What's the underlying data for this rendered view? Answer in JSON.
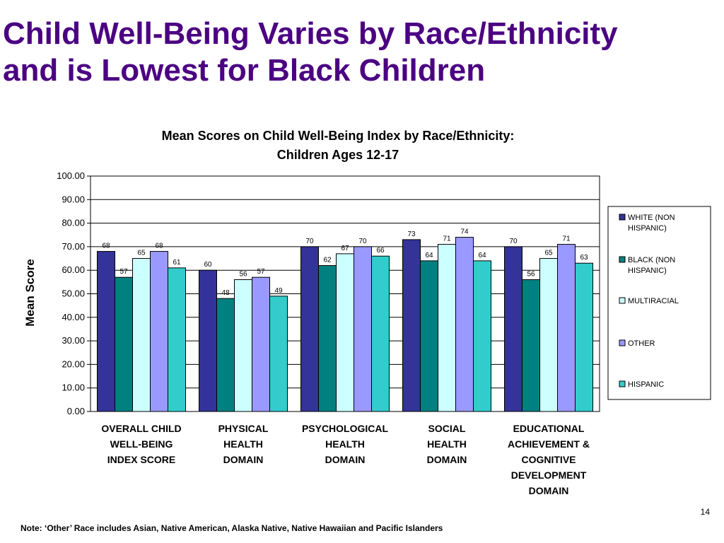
{
  "slide": {
    "title_lines": [
      "Child Well-Being Varies by Race/Ethnicity",
      "and is Lowest for Black Children"
    ],
    "page_number": "14",
    "footnote": "Note: ‘Other’ Race includes Asian, Native American, Alaska Native, Native Hawaiian and Pacific Islanders"
  },
  "chart_data": {
    "type": "bar",
    "title_lines": [
      "Mean Scores on Child Well-Being Index by Race/Ethnicity:",
      "Children Ages 12-17"
    ],
    "ylabel": "Mean Score",
    "xlabel": "",
    "ylim": [
      0,
      100
    ],
    "yticks": [
      "0.00",
      "10.00",
      "20.00",
      "30.00",
      "40.00",
      "50.00",
      "60.00",
      "70.00",
      "80.00",
      "90.00",
      "100.00"
    ],
    "grid": true,
    "legend_position": "right",
    "categories": [
      [
        "OVERALL CHILD",
        "WELL-BEING",
        "INDEX SCORE"
      ],
      [
        "PHYSICAL",
        "HEALTH",
        "DOMAIN"
      ],
      [
        "PSYCHOLOGICAL",
        "HEALTH",
        "DOMAIN"
      ],
      [
        "SOCIAL",
        "HEALTH",
        "DOMAIN"
      ],
      [
        "EDUCATIONAL",
        "ACHIEVEMENT &",
        "COGNITIVE",
        "DEVELOPMENT",
        "DOMAIN"
      ]
    ],
    "series": [
      {
        "name_lines": [
          "WHITE (NON",
          "HISPANIC)"
        ],
        "color": "#333399",
        "values": [
          68,
          60,
          70,
          73,
          70
        ],
        "labels": [
          "68",
          "60",
          "70",
          "73",
          "70"
        ]
      },
      {
        "name_lines": [
          "BLACK (NON",
          "HISPANIC)"
        ],
        "color": "#008080",
        "values": [
          57,
          48,
          62,
          64,
          56
        ],
        "labels": [
          "57",
          "48",
          "62",
          "64",
          "56"
        ]
      },
      {
        "name_lines": [
          "MULTIRACIAL"
        ],
        "color": "#CCFFFF",
        "values": [
          65,
          56,
          67,
          71,
          65
        ],
        "labels": [
          "65",
          "56",
          "67",
          "71",
          "65"
        ]
      },
      {
        "name_lines": [
          "OTHER"
        ],
        "color": "#9999FF",
        "values": [
          68,
          57,
          70,
          74,
          71
        ],
        "labels": [
          "68",
          "57",
          "70",
          "74",
          "71"
        ]
      },
      {
        "name_lines": [
          "HISPANIC"
        ],
        "color": "#33CCCC",
        "values": [
          61,
          49,
          66,
          64,
          63
        ],
        "labels": [
          "61",
          "49",
          "66",
          "64",
          "63"
        ]
      }
    ]
  }
}
